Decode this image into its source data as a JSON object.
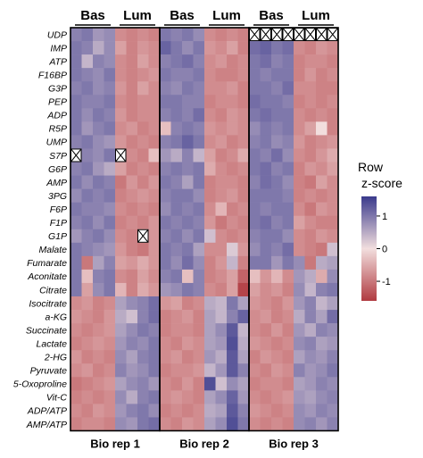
{
  "chart_data": {
    "type": "heatmap",
    "title": "",
    "replicates": [
      "Bio rep 1",
      "Bio rep 2",
      "Bio rep 3"
    ],
    "group_labels": [
      "Bas",
      "Lum"
    ],
    "columns_per_group": 4,
    "legend": {
      "title_line1": "Row",
      "title_line2": "z-score",
      "ticks": [
        "1",
        "0",
        "-1"
      ],
      "range": [
        -1.6,
        1.6
      ],
      "colors": {
        "low": "#b03a40",
        "mid": "#f2dede",
        "high": "#3a3a8c"
      }
    },
    "missing_marker": "X",
    "rows": [
      {
        "label": "UDP",
        "values": [
          0.9,
          1.0,
          0.7,
          0.8,
          -0.8,
          -0.9,
          -0.8,
          -0.9,
          1.0,
          0.9,
          1.0,
          0.8,
          -0.8,
          -0.9,
          -0.8,
          -0.9,
          null,
          null,
          null,
          null,
          null,
          null,
          null,
          null
        ]
      },
      {
        "label": "IMP",
        "values": [
          1.0,
          0.9,
          0.5,
          0.8,
          -0.6,
          -0.9,
          -0.7,
          -0.8,
          1.2,
          1.0,
          0.8,
          1.0,
          -0.7,
          -0.8,
          -0.6,
          -0.9,
          1.1,
          1.2,
          1.0,
          1.1,
          -0.8,
          -0.9,
          -0.7,
          -0.8
        ]
      },
      {
        "label": "ATP",
        "values": [
          1.0,
          0.4,
          0.9,
          0.8,
          -0.8,
          -0.9,
          -0.6,
          -0.8,
          0.9,
          1.0,
          1.1,
          0.9,
          -0.8,
          -0.7,
          -0.9,
          -0.8,
          1.0,
          1.1,
          0.9,
          1.0,
          -0.9,
          -0.8,
          -0.8,
          -0.9
        ]
      },
      {
        "label": "F16BP",
        "values": [
          1.0,
          0.9,
          0.8,
          1.0,
          -0.8,
          -0.9,
          -0.8,
          -0.7,
          1.0,
          0.9,
          0.9,
          1.0,
          -0.8,
          -0.9,
          -0.9,
          -0.8,
          1.0,
          0.9,
          1.0,
          1.0,
          -0.9,
          -0.7,
          -0.9,
          -0.8
        ]
      },
      {
        "label": "G3P",
        "values": [
          0.9,
          1.0,
          0.8,
          0.9,
          -0.7,
          -0.9,
          -0.6,
          -0.8,
          0.9,
          0.8,
          1.0,
          0.9,
          -0.8,
          -0.8,
          -0.7,
          -0.9,
          1.0,
          1.0,
          0.9,
          1.1,
          -0.8,
          -0.8,
          -0.9,
          -0.9
        ]
      },
      {
        "label": "PEP",
        "values": [
          1.0,
          0.9,
          0.9,
          1.0,
          -0.8,
          -0.9,
          -0.8,
          -0.8,
          1.0,
          1.0,
          0.9,
          0.9,
          -0.9,
          -0.8,
          -0.8,
          -0.9,
          1.1,
          1.0,
          1.0,
          0.9,
          -0.9,
          -0.8,
          -0.9,
          -0.8
        ]
      },
      {
        "label": "ADP",
        "values": [
          1.0,
          0.8,
          1.0,
          0.9,
          -0.7,
          -0.9,
          -0.8,
          -0.8,
          0.9,
          1.0,
          0.9,
          1.1,
          -0.8,
          -0.9,
          -0.7,
          -0.8,
          1.0,
          1.1,
          1.0,
          1.0,
          -0.8,
          -0.9,
          -0.8,
          -0.9
        ]
      },
      {
        "label": "R5P",
        "values": [
          1.0,
          0.7,
          0.9,
          1.0,
          -0.8,
          -0.7,
          -0.9,
          -0.8,
          -0.3,
          0.9,
          1.0,
          0.9,
          -0.7,
          -0.8,
          -0.7,
          -0.8,
          0.8,
          1.0,
          0.9,
          1.0,
          -0.8,
          -0.6,
          0.0,
          -0.9
        ]
      },
      {
        "label": "UMP",
        "values": [
          0.9,
          1.0,
          0.8,
          0.7,
          -0.7,
          -0.9,
          -0.8,
          -0.9,
          0.9,
          1.0,
          1.2,
          1.0,
          -0.8,
          -0.7,
          -0.9,
          -0.8,
          0.9,
          1.0,
          0.8,
          0.9,
          -0.7,
          -0.9,
          -0.8,
          -0.7
        ]
      },
      {
        "label": "S7P",
        "values": [
          null,
          0.9,
          0.8,
          1.0,
          null,
          -0.8,
          -0.9,
          -0.3,
          0.7,
          0.5,
          0.9,
          0.4,
          -0.6,
          -0.9,
          -0.8,
          -0.5,
          1.0,
          0.9,
          1.1,
          0.8,
          -0.8,
          -0.9,
          -0.7,
          -0.5
        ]
      },
      {
        "label": "G6P",
        "values": [
          0.9,
          1.0,
          0.7,
          0.5,
          -0.6,
          -0.9,
          -0.8,
          -0.9,
          0.9,
          1.0,
          0.9,
          1.0,
          -0.5,
          -0.8,
          -0.9,
          -0.8,
          1.0,
          1.1,
          0.9,
          1.0,
          -0.9,
          -0.7,
          -0.8,
          -0.6
        ]
      },
      {
        "label": "AMP",
        "values": [
          1.0,
          0.8,
          1.0,
          0.9,
          -1.0,
          -0.7,
          -0.9,
          -0.7,
          1.0,
          0.9,
          0.6,
          1.0,
          -0.9,
          -0.8,
          -0.8,
          -0.9,
          0.9,
          1.1,
          1.0,
          0.8,
          -0.9,
          -1.0,
          -0.6,
          -0.8
        ]
      },
      {
        "label": "3PG",
        "values": [
          0.8,
          1.0,
          0.9,
          1.0,
          -0.9,
          -0.8,
          -0.7,
          -0.8,
          0.9,
          1.0,
          1.0,
          0.8,
          -0.9,
          -0.8,
          -0.7,
          -0.9,
          1.0,
          1.0,
          1.0,
          0.9,
          -0.9,
          -0.8,
          -0.9,
          -0.8
        ]
      },
      {
        "label": "F6P",
        "values": [
          1.0,
          0.9,
          0.9,
          0.8,
          -0.8,
          -0.9,
          -0.8,
          -0.9,
          0.8,
          1.0,
          0.9,
          1.0,
          -0.8,
          -0.4,
          -0.9,
          -0.8,
          1.0,
          0.9,
          1.0,
          1.0,
          -0.8,
          -1.0,
          -0.7,
          -0.8
        ]
      },
      {
        "label": "F1P",
        "values": [
          0.9,
          1.0,
          0.8,
          1.0,
          -0.9,
          -0.8,
          -0.9,
          -0.7,
          1.0,
          0.9,
          1.0,
          0.9,
          -0.7,
          -1.0,
          -0.8,
          -0.9,
          1.0,
          1.1,
          0.9,
          1.0,
          -0.6,
          -0.8,
          -0.9,
          -0.9
        ]
      },
      {
        "label": "G1P",
        "values": [
          0.7,
          0.9,
          1.0,
          0.8,
          -0.8,
          -0.9,
          null,
          -0.7,
          0.9,
          1.0,
          0.8,
          1.0,
          0.3,
          -0.8,
          -0.9,
          -0.8,
          0.9,
          1.0,
          1.0,
          0.8,
          -0.8,
          -0.9,
          -0.7,
          -0.8
        ]
      },
      {
        "label": "Malate",
        "values": [
          1.0,
          0.9,
          0.8,
          0.7,
          -0.7,
          -0.9,
          -1.0,
          -0.7,
          1.0,
          0.9,
          1.0,
          0.6,
          -0.8,
          -0.8,
          0.2,
          -0.7,
          0.8,
          1.0,
          0.9,
          1.1,
          -0.8,
          -0.9,
          -1.0,
          0.3
        ]
      },
      {
        "label": "Fumarate",
        "values": [
          1.0,
          -1.0,
          0.6,
          0.9,
          -0.6,
          -0.7,
          -0.5,
          -0.7,
          1.0,
          0.8,
          1.1,
          0.8,
          -0.9,
          -0.7,
          0.4,
          -0.9,
          1.0,
          1.0,
          0.7,
          1.0,
          0.8,
          -1.0,
          0.5,
          0.6
        ]
      },
      {
        "label": "Aconitate",
        "values": [
          1.0,
          -0.3,
          0.9,
          1.0,
          -0.8,
          -0.9,
          -0.6,
          -0.8,
          0.9,
          1.0,
          -0.3,
          0.9,
          -0.9,
          -0.8,
          -0.6,
          -1.2,
          -0.3,
          -0.7,
          -0.4,
          -0.8,
          0.7,
          0.5,
          -0.5,
          0.8
        ]
      },
      {
        "label": "Citrate",
        "values": [
          1.0,
          -0.6,
          0.8,
          1.0,
          -0.4,
          -0.9,
          -0.5,
          -0.7,
          0.7,
          0.8,
          1.0,
          0.9,
          -0.8,
          -0.9,
          -0.6,
          -1.5,
          -0.6,
          -0.8,
          -0.7,
          -0.9,
          0.8,
          0.4,
          0.9,
          1.0
        ]
      },
      {
        "label": "Isocitrate",
        "values": [
          -0.8,
          -0.7,
          -0.9,
          -0.8,
          0.6,
          0.8,
          0.9,
          1.1,
          -0.7,
          -0.6,
          -0.9,
          -0.8,
          0.5,
          0.4,
          1.0,
          0.6,
          -0.7,
          -0.8,
          -0.9,
          -0.7,
          0.7,
          0.9,
          0.4,
          0.6
        ]
      },
      {
        "label": "a-KG",
        "values": [
          -0.7,
          -0.8,
          -0.9,
          -0.7,
          0.5,
          0.3,
          0.9,
          1.1,
          -0.9,
          -0.8,
          -0.7,
          -0.9,
          0.6,
          0.4,
          0.9,
          1.2,
          -0.8,
          -0.7,
          -0.9,
          -0.8,
          0.5,
          0.9,
          0.6,
          1.1
        ]
      },
      {
        "label": "Succinate",
        "values": [
          -0.8,
          -0.9,
          -0.8,
          -0.7,
          0.6,
          0.8,
          1.0,
          0.9,
          -0.9,
          -0.8,
          -0.8,
          -0.9,
          0.6,
          0.8,
          1.3,
          0.4,
          -0.8,
          -0.9,
          -0.7,
          -0.9,
          0.7,
          0.5,
          0.9,
          0.8
        ]
      },
      {
        "label": "Lactate",
        "values": [
          -0.9,
          -0.8,
          -0.7,
          -0.8,
          0.7,
          0.9,
          0.8,
          1.0,
          -0.8,
          -0.9,
          -0.7,
          -0.8,
          0.6,
          0.7,
          1.4,
          0.5,
          -0.7,
          -0.8,
          -0.9,
          -0.8,
          0.8,
          0.9,
          0.6,
          0.7
        ]
      },
      {
        "label": "2-HG",
        "values": [
          -0.7,
          -0.9,
          -0.8,
          -0.9,
          0.8,
          0.6,
          0.9,
          1.0,
          -0.8,
          -0.7,
          -0.9,
          -0.8,
          0.7,
          0.5,
          1.3,
          0.6,
          -0.9,
          -0.7,
          -0.8,
          -0.9,
          0.6,
          0.8,
          0.7,
          0.9
        ]
      },
      {
        "label": "Pyruvate",
        "values": [
          -0.8,
          -0.7,
          -0.9,
          -0.8,
          0.9,
          0.7,
          0.8,
          1.0,
          -0.9,
          -0.8,
          -0.8,
          -0.7,
          0.4,
          0.7,
          1.3,
          0.9,
          -0.8,
          -0.9,
          -0.7,
          -0.8,
          0.9,
          0.7,
          0.8,
          1.0
        ]
      },
      {
        "label": "5-Oxoproline",
        "values": [
          -1.0,
          -0.9,
          -0.8,
          -0.7,
          0.6,
          0.8,
          0.9,
          0.7,
          -0.8,
          -0.9,
          -0.7,
          -0.9,
          1.4,
          0.3,
          0.8,
          0.6,
          -0.9,
          -0.8,
          -0.8,
          -0.9,
          0.6,
          0.7,
          0.9,
          0.8
        ]
      },
      {
        "label": "Vit-C",
        "values": [
          -0.9,
          -0.8,
          -0.9,
          -0.8,
          0.8,
          0.5,
          0.9,
          1.0,
          -0.8,
          -0.7,
          -0.8,
          -0.9,
          0.6,
          0.8,
          1.2,
          0.7,
          -0.8,
          -0.9,
          -0.8,
          -0.7,
          0.7,
          0.6,
          0.8,
          0.9
        ]
      },
      {
        "label": "ADP/ATP",
        "values": [
          -0.8,
          -0.9,
          -0.7,
          -0.8,
          0.7,
          0.9,
          1.0,
          0.8,
          -0.9,
          -0.8,
          -0.9,
          -0.8,
          0.5,
          0.6,
          1.3,
          0.9,
          -0.7,
          -0.8,
          -0.9,
          -0.8,
          0.8,
          0.7,
          0.9,
          0.8
        ]
      },
      {
        "label": "AMP/ATP",
        "values": [
          -0.9,
          -0.8,
          -0.8,
          -0.9,
          0.8,
          0.7,
          1.0,
          1.1,
          -0.8,
          -0.9,
          -0.7,
          -0.8,
          0.6,
          0.8,
          1.4,
          1.0,
          -0.8,
          -0.9,
          -0.8,
          -0.9,
          0.8,
          0.9,
          0.7,
          0.9
        ]
      }
    ]
  }
}
